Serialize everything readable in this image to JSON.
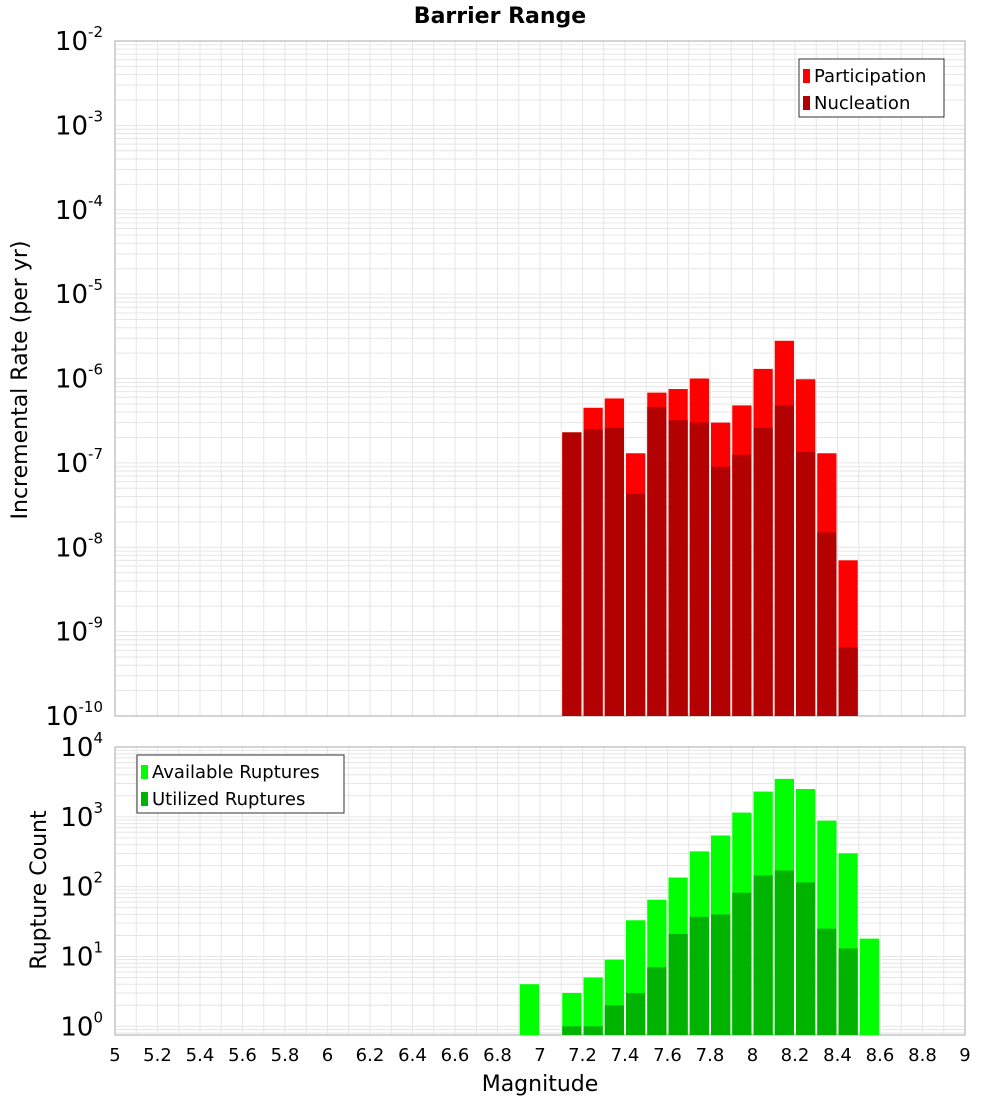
{
  "colors": {
    "participation": "#ff0000",
    "nucleation": "#b30000",
    "available": "#00ff00",
    "utilized": "#00b300",
    "grid": "#e6e6e6",
    "frame": "#aaaaaa"
  },
  "chart_data": [
    {
      "type": "bar",
      "title": "Barrier Range",
      "ylabel": "Incremental Rate (per yr)",
      "y_scale": "log",
      "ylim": [
        1e-10,
        0.01
      ],
      "xlim": [
        5,
        9
      ],
      "y_ticks": [
        {
          "base": "10",
          "exp": "-2",
          "value": 0.01
        },
        {
          "base": "10",
          "exp": "-3",
          "value": 0.001
        },
        {
          "base": "10",
          "exp": "-4",
          "value": 0.0001
        },
        {
          "base": "10",
          "exp": "-5",
          "value": 1e-05
        },
        {
          "base": "10",
          "exp": "-6",
          "value": 1e-06
        },
        {
          "base": "10",
          "exp": "-7",
          "value": 1e-07
        },
        {
          "base": "10",
          "exp": "-8",
          "value": 1e-08
        },
        {
          "base": "10",
          "exp": "-9",
          "value": 1e-09
        },
        {
          "base": "10",
          "exp": "-10",
          "value": 1e-10
        }
      ],
      "legend_position": "top-right",
      "series": [
        {
          "name": "Participation",
          "x": [
            7.15,
            7.25,
            7.35,
            7.45,
            7.55,
            7.65,
            7.75,
            7.85,
            7.95,
            8.05,
            8.15,
            8.25,
            8.35,
            8.45
          ],
          "values": [
            2.3e-07,
            4.5e-07,
            5.8e-07,
            1.3e-07,
            6.8e-07,
            7.5e-07,
            1e-06,
            3e-07,
            4.8e-07,
            1.3e-06,
            2.8e-06,
            9.8e-07,
            1.3e-07,
            7e-09
          ]
        },
        {
          "name": "Nucleation",
          "x": [
            7.15,
            7.25,
            7.35,
            7.45,
            7.55,
            7.65,
            7.75,
            7.85,
            7.95,
            8.05,
            8.15,
            8.25,
            8.35,
            8.45
          ],
          "values": [
            2.3e-07,
            2.5e-07,
            2.6e-07,
            4.3e-08,
            4.6e-07,
            3.2e-07,
            3e-07,
            9e-08,
            1.25e-07,
            2.6e-07,
            4.8e-07,
            1.35e-07,
            1.5e-08,
            6.5e-10
          ]
        }
      ]
    },
    {
      "type": "bar",
      "ylabel": "Rupture Count",
      "xlabel": "Magnitude",
      "y_scale": "log",
      "ylim": [
        0.75,
        10000
      ],
      "xlim": [
        5,
        9
      ],
      "y_ticks": [
        {
          "base": "10",
          "exp": "4",
          "value": 10000
        },
        {
          "base": "10",
          "exp": "3",
          "value": 1000
        },
        {
          "base": "10",
          "exp": "2",
          "value": 100
        },
        {
          "base": "10",
          "exp": "1",
          "value": 10
        },
        {
          "base": "10",
          "exp": "0",
          "value": 1
        }
      ],
      "x_ticks": [
        "5",
        "5.2",
        "5.4",
        "5.6",
        "5.8",
        "6",
        "6.2",
        "6.4",
        "6.6",
        "6.8",
        "7",
        "7.2",
        "7.4",
        "7.6",
        "7.8",
        "8",
        "8.2",
        "8.4",
        "8.6",
        "8.8",
        "9"
      ],
      "legend_position": "top-left",
      "series": [
        {
          "name": "Available Ruptures",
          "x": [
            6.95,
            7.15,
            7.25,
            7.35,
            7.45,
            7.55,
            7.65,
            7.75,
            7.85,
            7.95,
            8.05,
            8.15,
            8.25,
            8.35,
            8.45,
            8.55
          ],
          "values": [
            4,
            3,
            5,
            9,
            33,
            65,
            135,
            320,
            540,
            1150,
            2300,
            3500,
            2500,
            880,
            300,
            18
          ]
        },
        {
          "name": "Utilized Ruptures",
          "x": [
            7.15,
            7.25,
            7.35,
            7.45,
            7.55,
            7.65,
            7.75,
            7.85,
            7.95,
            8.05,
            8.15,
            8.25,
            8.35,
            8.45
          ],
          "values": [
            1,
            1,
            2,
            3,
            7,
            21,
            37,
            40,
            82,
            145,
            170,
            115,
            25,
            13
          ]
        }
      ]
    }
  ]
}
